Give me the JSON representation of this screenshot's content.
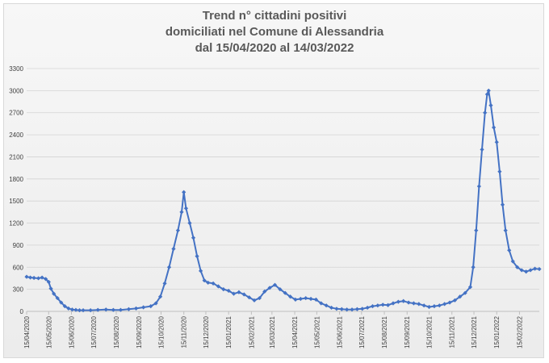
{
  "chart_data": {
    "type": "line",
    "title_lines": [
      "Trend n° cittadini positivi",
      "domiciliati nel Comune di Alessandria",
      "dal 15/04/2020 al 14/03/2022"
    ],
    "xlabel": "",
    "ylabel": "",
    "ylim": [
      0,
      3300
    ],
    "yticks": [
      0,
      300,
      600,
      900,
      1200,
      1500,
      1800,
      2100,
      2400,
      2700,
      3000,
      3300
    ],
    "xlim": [
      "2020-04-15",
      "2022-03-14"
    ],
    "xticks": [
      "15/04/2020",
      "15/05/2020",
      "15/06/2020",
      "15/07/2020",
      "15/08/2020",
      "15/09/2020",
      "15/10/2020",
      "15/11/2020",
      "15/12/2020",
      "15/01/2021",
      "15/02/2021",
      "15/03/2021",
      "15/04/2021",
      "15/05/2021",
      "15/06/2021",
      "15/07/2021",
      "15/08/2021",
      "15/09/2021",
      "15/10/2021",
      "15/11/2021",
      "15/12/2021",
      "15/01/2022",
      "15/02/2022"
    ],
    "grid": true,
    "legend": "none",
    "color": "#4472c4",
    "series": [
      {
        "points": [
          [
            "2020-04-15",
            470
          ],
          [
            "2020-04-20",
            460
          ],
          [
            "2020-04-25",
            455
          ],
          [
            "2020-05-01",
            450
          ],
          [
            "2020-05-06",
            460
          ],
          [
            "2020-05-11",
            440
          ],
          [
            "2020-05-15",
            400
          ],
          [
            "2020-05-18",
            310
          ],
          [
            "2020-05-22",
            240
          ],
          [
            "2020-05-27",
            180
          ],
          [
            "2020-06-01",
            120
          ],
          [
            "2020-06-06",
            70
          ],
          [
            "2020-06-11",
            40
          ],
          [
            "2020-06-16",
            25
          ],
          [
            "2020-06-21",
            20
          ],
          [
            "2020-06-26",
            15
          ],
          [
            "2020-07-01",
            15
          ],
          [
            "2020-07-11",
            15
          ],
          [
            "2020-07-21",
            20
          ],
          [
            "2020-08-01",
            25
          ],
          [
            "2020-08-11",
            20
          ],
          [
            "2020-08-21",
            20
          ],
          [
            "2020-09-01",
            30
          ],
          [
            "2020-09-11",
            40
          ],
          [
            "2020-09-21",
            55
          ],
          [
            "2020-10-01",
            70
          ],
          [
            "2020-10-08",
            110
          ],
          [
            "2020-10-14",
            200
          ],
          [
            "2020-10-20",
            380
          ],
          [
            "2020-10-26",
            600
          ],
          [
            "2020-11-01",
            850
          ],
          [
            "2020-11-07",
            1100
          ],
          [
            "2020-11-12",
            1350
          ],
          [
            "2020-11-15",
            1620
          ],
          [
            "2020-11-18",
            1400
          ],
          [
            "2020-11-23",
            1200
          ],
          [
            "2020-11-28",
            1000
          ],
          [
            "2020-12-03",
            750
          ],
          [
            "2020-12-08",
            550
          ],
          [
            "2020-12-13",
            420
          ],
          [
            "2020-12-18",
            390
          ],
          [
            "2020-12-25",
            380
          ],
          [
            "2021-01-01",
            340
          ],
          [
            "2021-01-08",
            300
          ],
          [
            "2021-01-15",
            280
          ],
          [
            "2021-01-22",
            240
          ],
          [
            "2021-01-29",
            260
          ],
          [
            "2021-02-05",
            230
          ],
          [
            "2021-02-12",
            190
          ],
          [
            "2021-02-19",
            150
          ],
          [
            "2021-02-26",
            180
          ],
          [
            "2021-03-05",
            270
          ],
          [
            "2021-03-12",
            320
          ],
          [
            "2021-03-19",
            360
          ],
          [
            "2021-03-26",
            300
          ],
          [
            "2021-04-02",
            250
          ],
          [
            "2021-04-09",
            200
          ],
          [
            "2021-04-16",
            160
          ],
          [
            "2021-04-23",
            170
          ],
          [
            "2021-04-30",
            180
          ],
          [
            "2021-05-07",
            170
          ],
          [
            "2021-05-14",
            160
          ],
          [
            "2021-05-21",
            110
          ],
          [
            "2021-05-28",
            80
          ],
          [
            "2021-06-04",
            50
          ],
          [
            "2021-06-11",
            35
          ],
          [
            "2021-06-18",
            30
          ],
          [
            "2021-06-25",
            25
          ],
          [
            "2021-07-02",
            25
          ],
          [
            "2021-07-09",
            30
          ],
          [
            "2021-07-16",
            35
          ],
          [
            "2021-07-23",
            50
          ],
          [
            "2021-07-30",
            70
          ],
          [
            "2021-08-06",
            80
          ],
          [
            "2021-08-13",
            90
          ],
          [
            "2021-08-20",
            85
          ],
          [
            "2021-08-27",
            110
          ],
          [
            "2021-09-03",
            130
          ],
          [
            "2021-09-10",
            140
          ],
          [
            "2021-09-17",
            120
          ],
          [
            "2021-09-24",
            110
          ],
          [
            "2021-10-01",
            100
          ],
          [
            "2021-10-08",
            80
          ],
          [
            "2021-10-15",
            60
          ],
          [
            "2021-10-22",
            70
          ],
          [
            "2021-10-29",
            80
          ],
          [
            "2021-11-05",
            100
          ],
          [
            "2021-11-12",
            120
          ],
          [
            "2021-11-19",
            150
          ],
          [
            "2021-11-26",
            200
          ],
          [
            "2021-12-03",
            250
          ],
          [
            "2021-12-10",
            330
          ],
          [
            "2021-12-14",
            600
          ],
          [
            "2021-12-18",
            1100
          ],
          [
            "2021-12-22",
            1700
          ],
          [
            "2021-12-26",
            2200
          ],
          [
            "2021-12-30",
            2700
          ],
          [
            "2022-01-02",
            2950
          ],
          [
            "2022-01-04",
            3000
          ],
          [
            "2022-01-07",
            2800
          ],
          [
            "2022-01-11",
            2500
          ],
          [
            "2022-01-15",
            2300
          ],
          [
            "2022-01-19",
            1900
          ],
          [
            "2022-01-23",
            1450
          ],
          [
            "2022-01-27",
            1100
          ],
          [
            "2022-02-01",
            830
          ],
          [
            "2022-02-06",
            680
          ],
          [
            "2022-02-12",
            600
          ],
          [
            "2022-02-18",
            560
          ],
          [
            "2022-02-24",
            540
          ],
          [
            "2022-03-02",
            560
          ],
          [
            "2022-03-08",
            580
          ],
          [
            "2022-03-14",
            575
          ]
        ]
      }
    ]
  }
}
